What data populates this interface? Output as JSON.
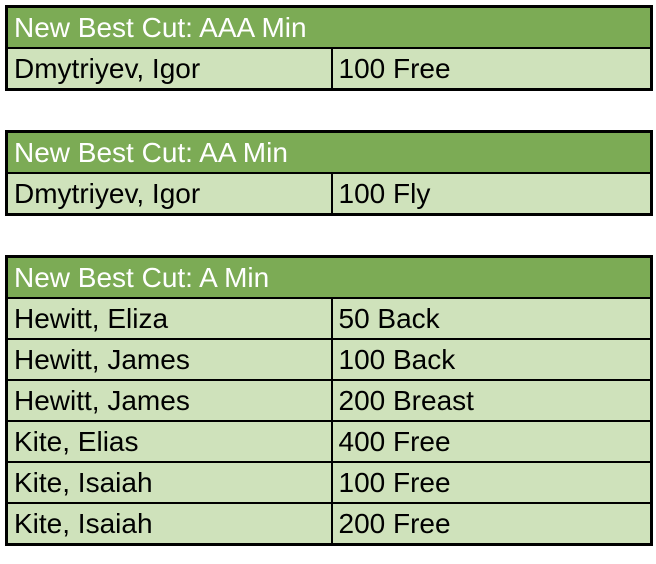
{
  "theme": {
    "header_bg": "#7cab55",
    "row_bg": "#cfe2bb",
    "border_color": "#000000",
    "header_text": "#ffffff",
    "row_text": "#000000"
  },
  "tables": [
    {
      "title": "New Best Cut: AAA Min",
      "rows": [
        {
          "name": "Dmytriyev, Igor",
          "event": "100 Free"
        }
      ]
    },
    {
      "title": "New Best Cut: AA Min",
      "rows": [
        {
          "name": "Dmytriyev, Igor",
          "event": "100 Fly"
        }
      ]
    },
    {
      "title": "New Best Cut: A Min",
      "rows": [
        {
          "name": "Hewitt, Eliza",
          "event": "50 Back"
        },
        {
          "name": "Hewitt, James",
          "event": "100 Back"
        },
        {
          "name": "Hewitt, James",
          "event": "200 Breast"
        },
        {
          "name": "Kite, Elias",
          "event": "400 Free"
        },
        {
          "name": "Kite, Isaiah",
          "event": "100 Free"
        },
        {
          "name": "Kite, Isaiah",
          "event": "200 Free"
        }
      ]
    }
  ]
}
